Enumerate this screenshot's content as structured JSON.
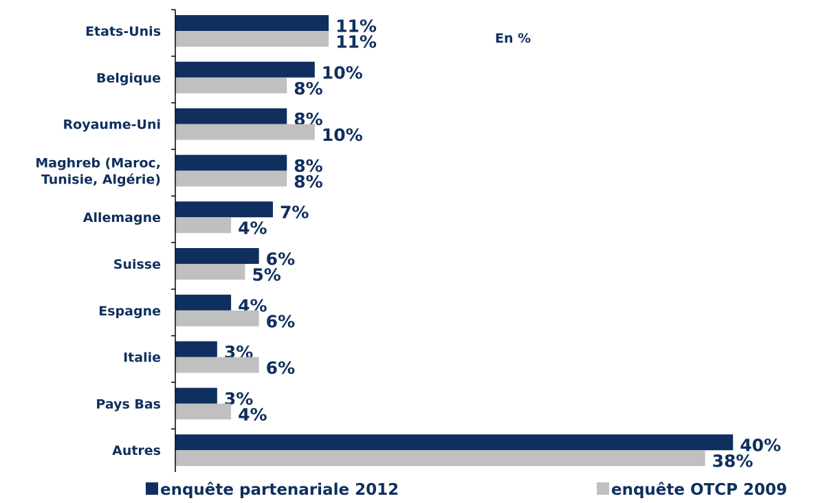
{
  "chart_data": {
    "type": "bar",
    "orientation": "horizontal",
    "unit_note": "En %",
    "categories": [
      "Etats-Unis",
      "Belgique",
      "Royaume-Uni",
      "Maghreb (Maroc, Tunisie, Algérie)",
      "Allemagne",
      "Suisse",
      "Espagne",
      "Italie",
      "Pays Bas",
      "Autres"
    ],
    "category_lines": [
      [
        "Etats-Unis"
      ],
      [
        "Belgique"
      ],
      [
        "Royaume-Uni"
      ],
      [
        "Maghreb (Maroc,",
        "Tunisie, Algérie)"
      ],
      [
        "Allemagne"
      ],
      [
        "Suisse"
      ],
      [
        "Espagne"
      ],
      [
        "Italie"
      ],
      [
        "Pays Bas"
      ],
      [
        "Autres"
      ]
    ],
    "series": [
      {
        "name": "enquête partenariale 2012",
        "color": "#0f2f5e",
        "values": [
          11,
          10,
          8,
          8,
          7,
          6,
          4,
          3,
          3,
          40
        ],
        "labels": [
          "11%",
          "10%",
          "8%",
          "8%",
          "7%",
          "6%",
          "4%",
          "3%",
          "3%",
          "40%"
        ]
      },
      {
        "name": "enquête OTCP 2009",
        "color": "#c0c0c0",
        "values": [
          11,
          8,
          10,
          8,
          4,
          5,
          6,
          6,
          4,
          38
        ],
        "labels": [
          "11%",
          "8%",
          "10%",
          "8%",
          "4%",
          "5%",
          "6%",
          "6%",
          "4%",
          "38%"
        ]
      }
    ],
    "xlim": [
      0,
      40
    ],
    "grid": false,
    "legend_position": "bottom"
  }
}
